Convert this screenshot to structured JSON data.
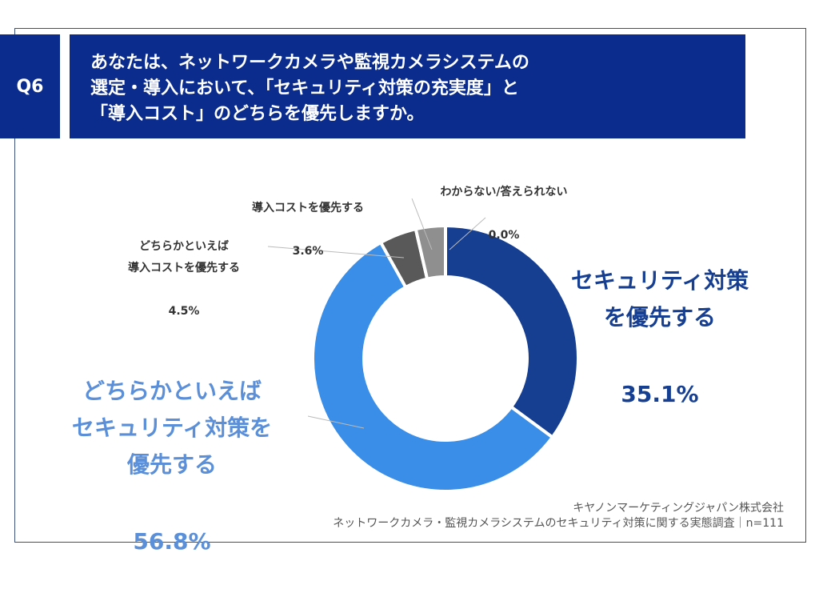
{
  "header": {
    "question_no": "Q6",
    "question": "あなたは、ネットワークカメラや監視カメラシステムの\n選定・導入において、「セキュリティ対策の充実度」と\n「導入コスト」のどちらを優先しますか。"
  },
  "chart_data": {
    "type": "pie",
    "donut": true,
    "categories": [
      "セキュリティ対策を優先する",
      "どちらかといえばセキュリティ対策を優先する",
      "どちらかといえば導入コストを優先する",
      "導入コストを優先する",
      "わからない/答えられない"
    ],
    "values": [
      35.1,
      56.8,
      4.5,
      3.6,
      0.0
    ],
    "colors": [
      "#173f91",
      "#3a8ee8",
      "#595959",
      "#8f8f8f",
      "#b0b0b0"
    ],
    "labels": [
      {
        "name": "セキュリティ対策\nを優先する",
        "value": "35.1%"
      },
      {
        "name": "どちらかといえば\nセキュリティ対策を\n優先する",
        "value": "56.8%"
      },
      {
        "name": "どちらかといえば\n導入コストを優先する",
        "value": "4.5%"
      },
      {
        "name": "導入コストを優先する",
        "value": "3.6%"
      },
      {
        "name": "わからない/答えられない",
        "value": "0.0%"
      }
    ],
    "start": "top",
    "direction": "clockwise"
  },
  "footer": {
    "company": "キヤノンマーケティングジャパン株式会社",
    "survey": "ネットワークカメラ・監視カメラシステムのセキュリティ対策に関する実態調査｜n=111"
  }
}
